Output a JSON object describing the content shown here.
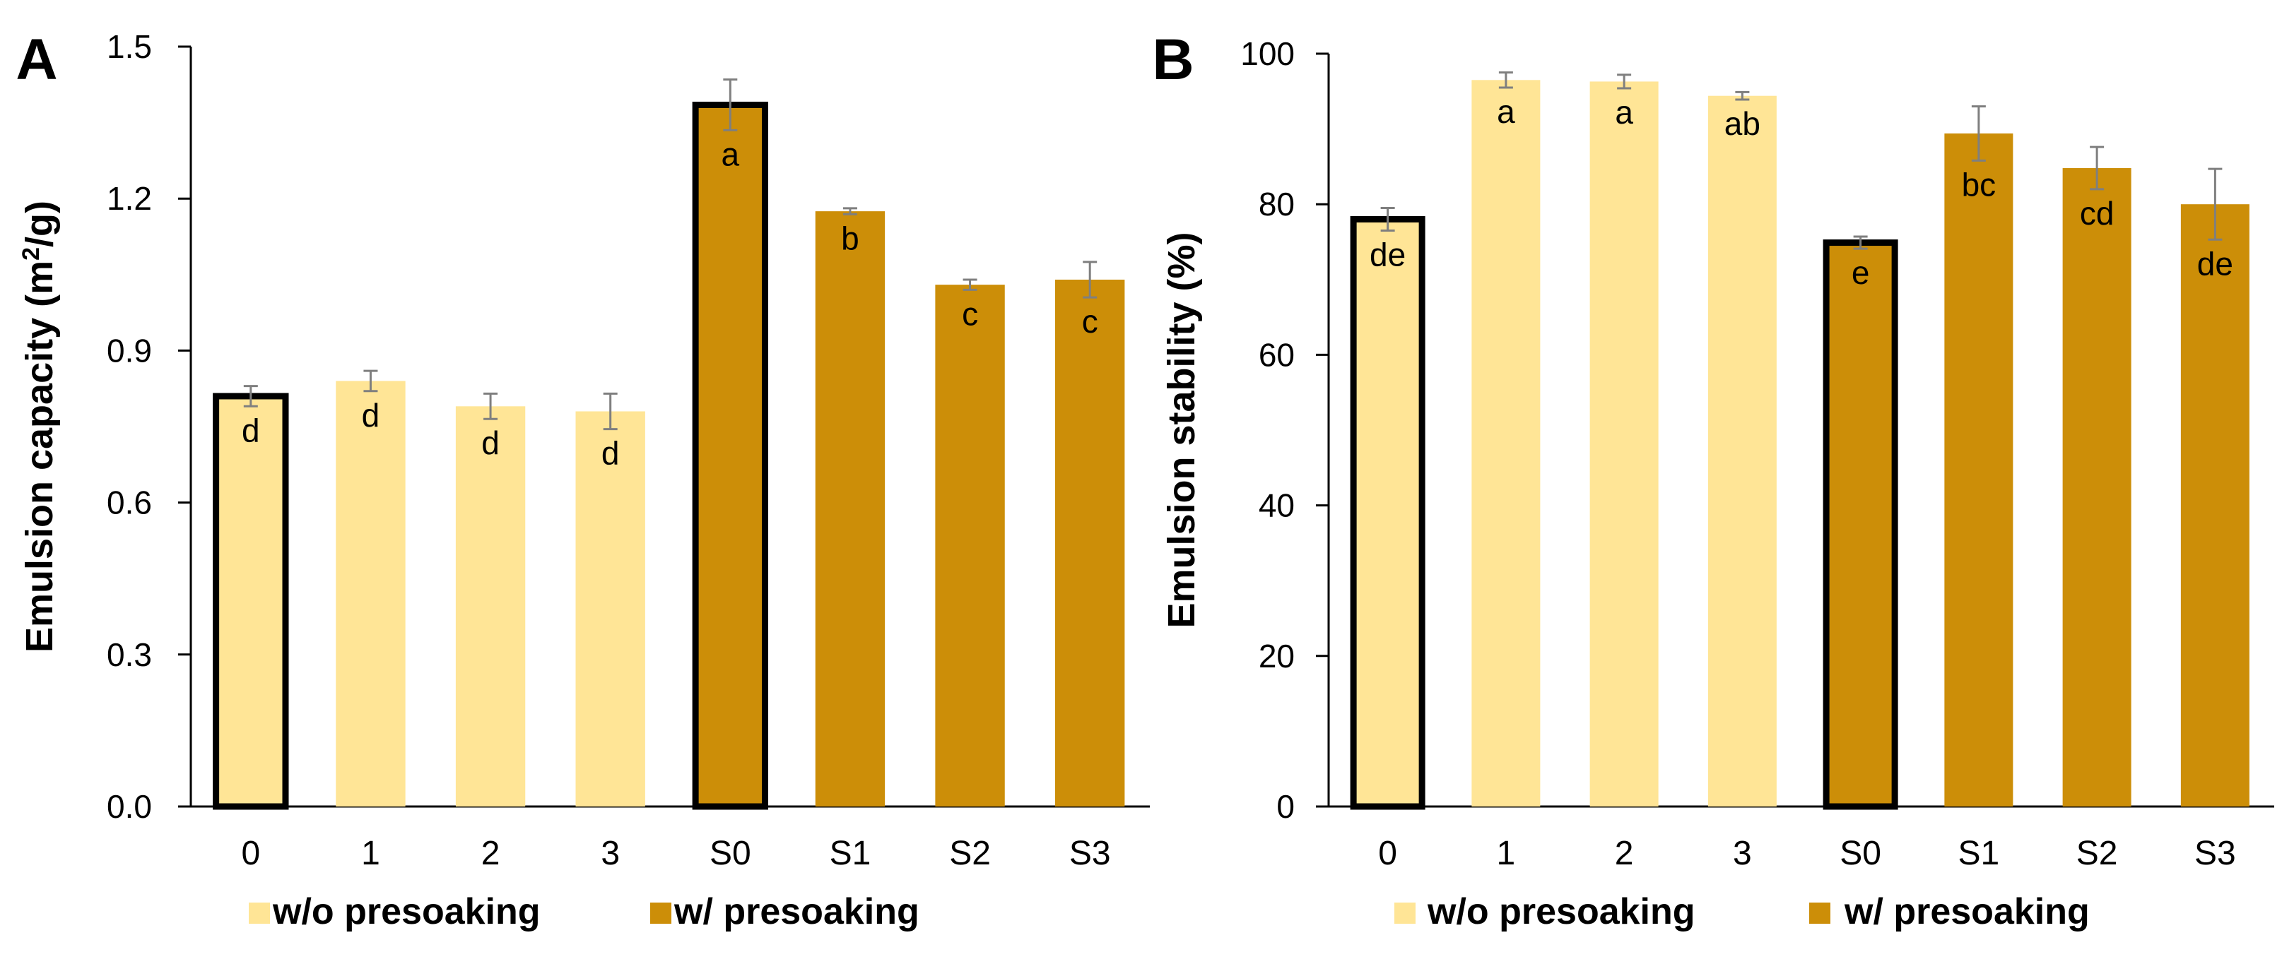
{
  "colors": {
    "without_presoaking": "#FFE596",
    "with_presoaking": "#CC8E08",
    "axis": "#000000",
    "error_bar": "#7F7F7F",
    "highlight_outline": "#000000"
  },
  "chart_data": [
    {
      "panel_label": "A",
      "type": "bar",
      "title": "",
      "xlabel": "",
      "ylabel_main": "Emulsion capacity (m",
      "ylabel_sup": "2",
      "ylabel_end": "/g)",
      "ylim": [
        0,
        1.5
      ],
      "yticks": [
        "0.0",
        "0.3",
        "0.6",
        "0.9",
        "1.2",
        "1.5"
      ],
      "categories": [
        "0",
        "1",
        "2",
        "3",
        "S0",
        "S1",
        "S2",
        "S3"
      ],
      "values": [
        0.81,
        0.84,
        0.79,
        0.78,
        1.385,
        1.175,
        1.03,
        1.04
      ],
      "errors": [
        0.02,
        0.02,
        0.025,
        0.035,
        0.05,
        0.006,
        0.01,
        0.035
      ],
      "letters": [
        "d",
        "d",
        "d",
        "d",
        "a",
        "b",
        "c",
        "c"
      ],
      "groups": [
        "without_presoaking",
        "without_presoaking",
        "without_presoaking",
        "without_presoaking",
        "with_presoaking",
        "with_presoaking",
        "with_presoaking",
        "with_presoaking"
      ],
      "outlined": [
        true,
        false,
        false,
        false,
        true,
        false,
        false,
        false
      ],
      "legend": [
        "w/o presoaking",
        "w/ presoaking"
      ],
      "legend_position": "bottom"
    },
    {
      "panel_label": "B",
      "type": "bar",
      "title": "",
      "xlabel": "",
      "ylabel_main": "Emulsion stability (%)",
      "ylabel_sup": "",
      "ylabel_end": "",
      "ylim": [
        0,
        100
      ],
      "yticks": [
        "0",
        "20",
        "40",
        "60",
        "80",
        "100"
      ],
      "categories": [
        "0",
        "1",
        "2",
        "3",
        "S0",
        "S1",
        "S2",
        "S3"
      ],
      "values": [
        78,
        96.5,
        96.3,
        94.4,
        74.9,
        89.4,
        84.8,
        80.0
      ],
      "errors": [
        1.5,
        1.0,
        0.9,
        0.5,
        0.8,
        3.6,
        2.8,
        4.7
      ],
      "letters": [
        "de",
        "a",
        "a",
        "ab",
        "e",
        "bc",
        "cd",
        "de"
      ],
      "groups": [
        "without_presoaking",
        "without_presoaking",
        "without_presoaking",
        "without_presoaking",
        "with_presoaking",
        "with_presoaking",
        "with_presoaking",
        "with_presoaking"
      ],
      "outlined": [
        true,
        false,
        false,
        false,
        true,
        false,
        false,
        false
      ],
      "legend": [
        "w/o presoaking",
        "w/ presoaking"
      ],
      "legend_position": "bottom"
    }
  ]
}
